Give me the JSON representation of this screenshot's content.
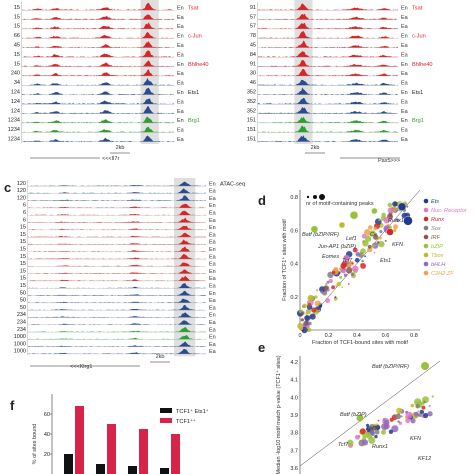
{
  "panels": {
    "top_left": {
      "scales": [
        "15",
        "15",
        "15",
        "66",
        "45",
        "15",
        "15",
        "240",
        "34",
        "124",
        "124",
        "124",
        "1234",
        "1234",
        "1234"
      ],
      "track_labels": [
        {
          "text": "Tsat",
          "color": "#d62728"
        },
        {
          "text": "IRF4",
          "color": "#d62728"
        },
        {
          "text": "c-Jun",
          "color": "#d62728"
        },
        {
          "text": "NFATc1",
          "color": "#d62728"
        },
        {
          "text": "Bhlhe40",
          "color": "#d62728"
        },
        {
          "text": "TCF1",
          "color": "#222"
        },
        {
          "text": "Ets1",
          "color": "#222"
        },
        {
          "text": "Runx1",
          "color": "#222"
        },
        {
          "text": "Brg1",
          "color": "#2ca02c"
        },
        {
          "text": "RNA-seq",
          "color": "#222"
        }
      ],
      "states": [
        "Ea",
        "Ea",
        "Ea",
        "Ea",
        "Ea",
        "Ea",
        "Ea",
        "Ea",
        "Ea",
        "Ea",
        "Ea",
        "Ea",
        "Ea",
        "Ea",
        "Ea"
      ],
      "scale_bar": "2kb",
      "gene": "<<<Il7r"
    },
    "top_right": {
      "scales": [
        "91",
        "57",
        "57",
        "78",
        "45",
        "84",
        "91",
        "30",
        "46",
        "352",
        "352",
        "352",
        "151",
        "151",
        "151"
      ],
      "track_labels": [
        {
          "text": "Tsat",
          "color": "#d62728"
        },
        {
          "text": "IRF4",
          "color": "#d62728"
        },
        {
          "text": "c-Jun",
          "color": "#d62728"
        },
        {
          "text": "NFATc1",
          "color": "#d62728"
        },
        {
          "text": "Bhlhe40",
          "color": "#d62728"
        },
        {
          "text": "TCF1",
          "color": "#222"
        },
        {
          "text": "Ets1",
          "color": "#222"
        },
        {
          "text": "Runx1",
          "color": "#222"
        },
        {
          "text": "Brg1",
          "color": "#2ca02c"
        },
        {
          "text": "RNA-seq",
          "color": "#222"
        }
      ],
      "scale_bar": "2kb",
      "gene": "Pax5>>>"
    },
    "c": {
      "letter": "c",
      "scales": [
        "120",
        "120",
        "120",
        "6",
        "6",
        "6",
        "15",
        "15",
        "15",
        "15",
        "15",
        "15",
        "15",
        "15",
        "15",
        "50",
        "50",
        "50",
        "234",
        "234",
        "234",
        "1000",
        "1000",
        "1000"
      ],
      "track_labels": [
        {
          "text": "ATAC-seq",
          "color": "#222"
        },
        {
          "text": "Tsat",
          "color": "#d62728"
        },
        {
          "text": "IRF4",
          "color": "#d62728"
        },
        {
          "text": "c-Jun",
          "color": "#d62728"
        },
        {
          "text": "NFATc1",
          "color": "#d62728"
        },
        {
          "text": "Bhlhe40",
          "color": "#d62728"
        },
        {
          "text": "TCF1",
          "color": "#222"
        },
        {
          "text": "Ets1",
          "color": "#222"
        },
        {
          "text": "Runx1",
          "color": "#222"
        },
        {
          "text": "Brg1",
          "color": "#2ca02c"
        },
        {
          "text": "RNA-seq",
          "color": "#222"
        }
      ],
      "scale_bar": "2kb",
      "gene": "<<<Klrg1"
    },
    "d": {
      "letter": "d",
      "size_legend": "nr of motif-containing peaks",
      "xlabel": "Fraction of TCF1-bound sites with motif",
      "ylabel": "Fraction of TCF1⁺ sites with motif",
      "families": [
        {
          "name": "Ets",
          "color": "#1f3b8f"
        },
        {
          "name": "Nuc. Receptor",
          "color": "#e377c2"
        },
        {
          "name": "Runx",
          "color": "#d62728"
        },
        {
          "name": "Sox",
          "color": "#7f7f7f"
        },
        {
          "name": "IRF",
          "color": "#8c564b"
        },
        {
          "name": "bZIP",
          "color": "#98c23c"
        },
        {
          "name": "Tbox",
          "color": "#bcbd22"
        },
        {
          "name": "bHLH",
          "color": "#9467bd"
        },
        {
          "name": "C2H2 ZF",
          "color": "#f0a050"
        }
      ],
      "annotations": [
        "Batf (bZIP/IRF)",
        "Jun-AP1 (bZIP)",
        "Eomes",
        "Tcf7",
        "Lef1",
        "Runx1",
        "Ets1",
        "KFN",
        "Ce"
      ]
    },
    "e": {
      "letter": "e",
      "ylabel": "Median -log10 motif match p-value (TCF1⁺ sites)",
      "yticks": [
        "4.2",
        "4.1",
        "4.0",
        "3.9",
        "3.8",
        "3.7",
        "3.6"
      ],
      "annotations": [
        "Batf (bZIP/IRF)",
        "Batf (bZIP)",
        "Lef1",
        "Tcf7",
        "Runx1",
        "KFN",
        "KF12"
      ]
    },
    "f": {
      "letter": "f",
      "ylabel": "% of sites bound",
      "yticks": [
        "60",
        "40",
        "20"
      ],
      "legend": [
        {
          "label": "TCF1⁺ Ets1⁺",
          "color": "#111111"
        },
        {
          "label": "TCF1⁺⁺",
          "color": "#d8234a"
        }
      ]
    }
  },
  "chart_data": [
    {
      "type": "scatter",
      "panel": "d",
      "xlabel": "Fraction of TCF1-bound sites with motif",
      "ylabel": "Fraction of TCF1⁺ sites with motif",
      "xlim": [
        0,
        0.9
      ],
      "ylim": [
        0,
        0.9
      ],
      "xticks": [
        "0",
        "0.2",
        "0.4",
        "0.6",
        "0.8"
      ],
      "yticks": [
        "0.2",
        "0.4",
        "0.6",
        "0.8"
      ]
    },
    {
      "type": "scatter",
      "panel": "e",
      "ylim": [
        3.6,
        4.2
      ],
      "yticks": [
        "4.2",
        "4.1",
        "4.0",
        "3.9",
        "3.8",
        "3.7",
        "3.6"
      ]
    },
    {
      "type": "bar",
      "panel": "f",
      "ylabel": "% of sites bound",
      "ylim": [
        0,
        80
      ],
      "series": [
        {
          "name": "TCF1⁺ Ets1⁺",
          "color": "#111111",
          "values": [
            20,
            10,
            8,
            6
          ]
        },
        {
          "name": "TCF1⁺⁺",
          "color": "#d8234a",
          "values": [
            68,
            50,
            45,
            40
          ]
        }
      ]
    }
  ]
}
